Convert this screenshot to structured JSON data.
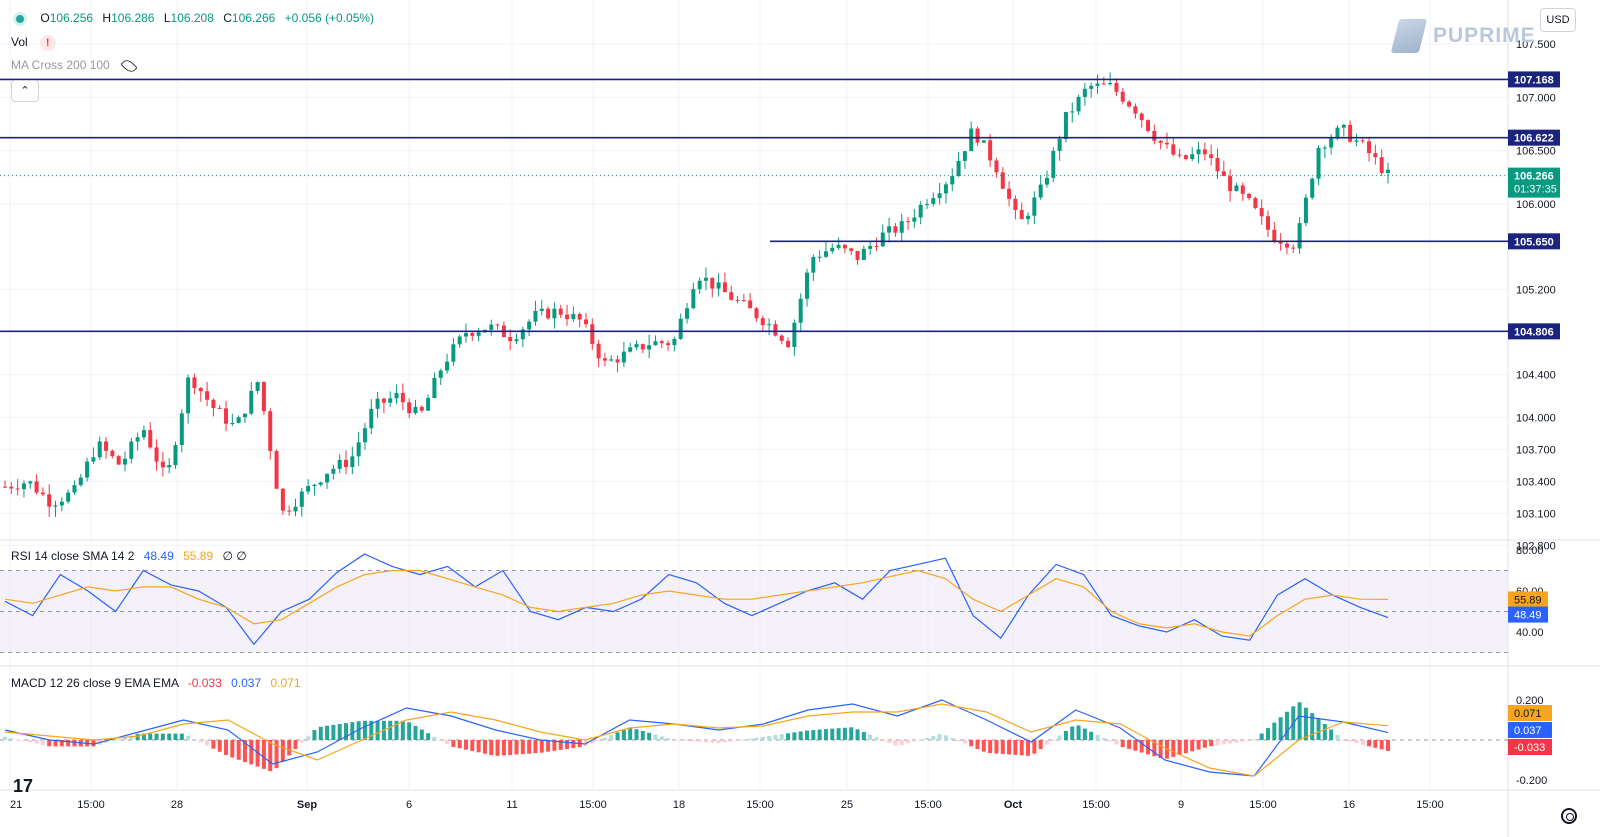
{
  "legend": {
    "open_label": "O",
    "open": "106.256",
    "high_label": "H",
    "high": "106.286",
    "low_label": "L",
    "low": "106.208",
    "close_label": "C",
    "close": "106.266",
    "change": "+0.056 (+0.05%)",
    "vol_label": "Vol",
    "ma_label": "MA Cross 200 100"
  },
  "currency": "USD",
  "brand": "PUPRIME",
  "price_axis": {
    "ticks": [
      "107.500",
      "107.000",
      "106.500",
      "106.000",
      "105.200",
      "104.400",
      "104.000",
      "103.700",
      "103.400",
      "103.100",
      "102.800"
    ],
    "tick_values": [
      107.5,
      107.0,
      106.5,
      106.0,
      105.2,
      104.4,
      104.0,
      103.7,
      103.4,
      103.1,
      102.8
    ]
  },
  "levels": [
    "107.168",
    "106.622",
    "105.650",
    "104.806"
  ],
  "current_price": {
    "value": "106.266",
    "countdown": "01:37:35"
  },
  "x_axis_labels": [
    "21",
    "15:00",
    "28",
    "Sep",
    "6",
    "11",
    "15:00",
    "18",
    "15:00",
    "25",
    "15:00",
    "Oct",
    "15:00",
    "9",
    "15:00",
    "16",
    "15:00"
  ],
  "rsi": {
    "label": "RSI 14 close SMA 14 2",
    "rsi_value": "48.49",
    "sma_value": "55.89",
    "extra": "∅ ∅",
    "ticks": [
      "80.00",
      "60.00",
      "40.00"
    ],
    "tick_values": [
      80,
      60,
      40
    ]
  },
  "macd": {
    "label": "MACD 12 26 close 9 EMA EMA",
    "hist": "-0.033",
    "macd": "0.037",
    "signal": "0.071",
    "ticks": [
      "0.200",
      "-0.200"
    ],
    "tick_values": [
      0.2,
      -0.2
    ]
  },
  "colors": {
    "up": "#089981",
    "down": "#f23645",
    "level": "#1a237e",
    "rsi": "#2962ff",
    "sma": "#f7a51e",
    "panel": "#ede7f6"
  },
  "chart_data": {
    "type": "candlestick",
    "price_path": [
      103.35,
      103.4,
      103.2,
      103.3,
      103.75,
      103.55,
      103.9,
      103.4,
      104.4,
      104.1,
      103.9,
      104.35,
      103.1,
      103.3,
      103.5,
      103.6,
      104.1,
      104.2,
      104.0,
      104.5,
      104.8,
      104.85,
      104.75,
      104.95,
      105.0,
      104.9,
      104.5,
      104.6,
      104.7,
      104.7,
      105.35,
      105.2,
      105.05,
      104.9,
      104.7,
      105.5,
      105.6,
      105.5,
      105.7,
      105.8,
      106.05,
      106.25,
      106.7,
      106.35,
      105.8,
      106.15,
      106.8,
      107.1,
      107.1,
      106.9,
      106.6,
      106.4,
      106.5,
      106.2,
      106.0,
      105.7,
      105.62,
      106.55,
      106.7,
      106.52,
      106.27
    ],
    "rsi_path": [
      55,
      48,
      68,
      60,
      50,
      70,
      63,
      60,
      52,
      34,
      50,
      56,
      69,
      78,
      72,
      68,
      72,
      62,
      70,
      50,
      46,
      52,
      50,
      56,
      68,
      64,
      54,
      48,
      54,
      60,
      64,
      56,
      70,
      73,
      76,
      48,
      37,
      58,
      73,
      68,
      48,
      43,
      40,
      46,
      38,
      36,
      58,
      66,
      58,
      52,
      47
    ],
    "rsi_sma_path": [
      56,
      54,
      58,
      62,
      60,
      62,
      62,
      56,
      52,
      44,
      46,
      54,
      62,
      68,
      70,
      70,
      66,
      62,
      58,
      52,
      50,
      52,
      54,
      58,
      60,
      58,
      56,
      56,
      58,
      60,
      62,
      64,
      67,
      70,
      66,
      56,
      50,
      58,
      66,
      62,
      50,
      44,
      42,
      44,
      40,
      38,
      48,
      56,
      58,
      56,
      55.89
    ],
    "macd_path": [
      0.05,
      0.0,
      -0.02,
      0.04,
      0.1,
      0.05,
      -0.12,
      -0.06,
      0.06,
      0.16,
      0.12,
      0.05,
      0.0,
      -0.02,
      0.1,
      0.08,
      0.05,
      0.08,
      0.15,
      0.18,
      0.12,
      0.2,
      0.1,
      -0.01,
      0.15,
      0.06,
      -0.1,
      -0.16,
      -0.18,
      0.12,
      0.09,
      0.037
    ],
    "signal_path": [
      0.04,
      0.02,
      0.0,
      0.02,
      0.08,
      0.1,
      -0.02,
      -0.1,
      0.0,
      0.1,
      0.14,
      0.1,
      0.04,
      0.0,
      0.06,
      0.08,
      0.06,
      0.07,
      0.12,
      0.14,
      0.14,
      0.18,
      0.14,
      0.04,
      0.1,
      0.08,
      -0.04,
      -0.14,
      -0.18,
      0.0,
      0.09,
      0.071
    ]
  }
}
